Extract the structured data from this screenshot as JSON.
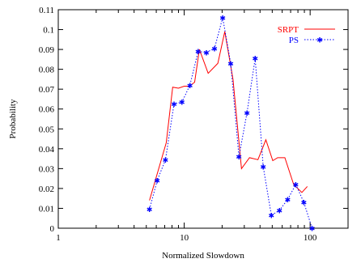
{
  "chart_data": {
    "type": "line",
    "title": "",
    "xlabel": "Normalized Slowdown",
    "ylabel": "Probability",
    "xscale": "log",
    "xlim": [
      1,
      200
    ],
    "ylim": [
      0,
      0.11
    ],
    "xticks": [
      1,
      10,
      100
    ],
    "xtick_labels": [
      "1",
      "10",
      "100"
    ],
    "yticks": [
      0,
      0.01,
      0.02,
      0.03,
      0.04,
      0.05,
      0.06,
      0.07,
      0.08,
      0.09,
      0.1,
      0.11
    ],
    "ytick_labels": [
      "0",
      "0.01",
      "0.02",
      "0.03",
      "0.04",
      "0.05",
      "0.06",
      "0.07",
      "0.08",
      "0.09",
      "0.1",
      "0.11"
    ],
    "grid": false,
    "legend_position": "top-right",
    "series": [
      {
        "name": "SRPT",
        "color": "#ff0000",
        "style": "solid",
        "marker": "none",
        "x": [
          5.3,
          7.2,
          8.1,
          9.0,
          10.0,
          11.0,
          12.1,
          13.2,
          15.5,
          18.5,
          21.0,
          24.4,
          28.5,
          33.0,
          38.5,
          44.5,
          50.5,
          55.2,
          63.0,
          74.0,
          86.0,
          95.0
        ],
        "y": [
          0.014,
          0.043,
          0.071,
          0.0705,
          0.0715,
          0.0715,
          0.0735,
          0.09,
          0.078,
          0.083,
          0.099,
          0.075,
          0.03,
          0.0355,
          0.0345,
          0.0445,
          0.034,
          0.0355,
          0.0355,
          0.022,
          0.018,
          0.021
        ]
      },
      {
        "name": "PS",
        "color": "#0000ff",
        "style": "dotted",
        "marker": "asterisk",
        "x": [
          5.3,
          6.1,
          7.1,
          8.3,
          9.6,
          11.1,
          12.9,
          15.0,
          17.4,
          20.2,
          23.4,
          27.2,
          31.5,
          36.6,
          42.4,
          49.2,
          57.1,
          66.3,
          76.9,
          89.2,
          103.5
        ],
        "y": [
          0.0095,
          0.024,
          0.0345,
          0.0625,
          0.0635,
          0.072,
          0.089,
          0.0885,
          0.0905,
          0.106,
          0.083,
          0.036,
          0.058,
          0.0855,
          0.031,
          0.0065,
          0.009,
          0.0145,
          0.022,
          0.013,
          0.0
        ]
      }
    ]
  }
}
